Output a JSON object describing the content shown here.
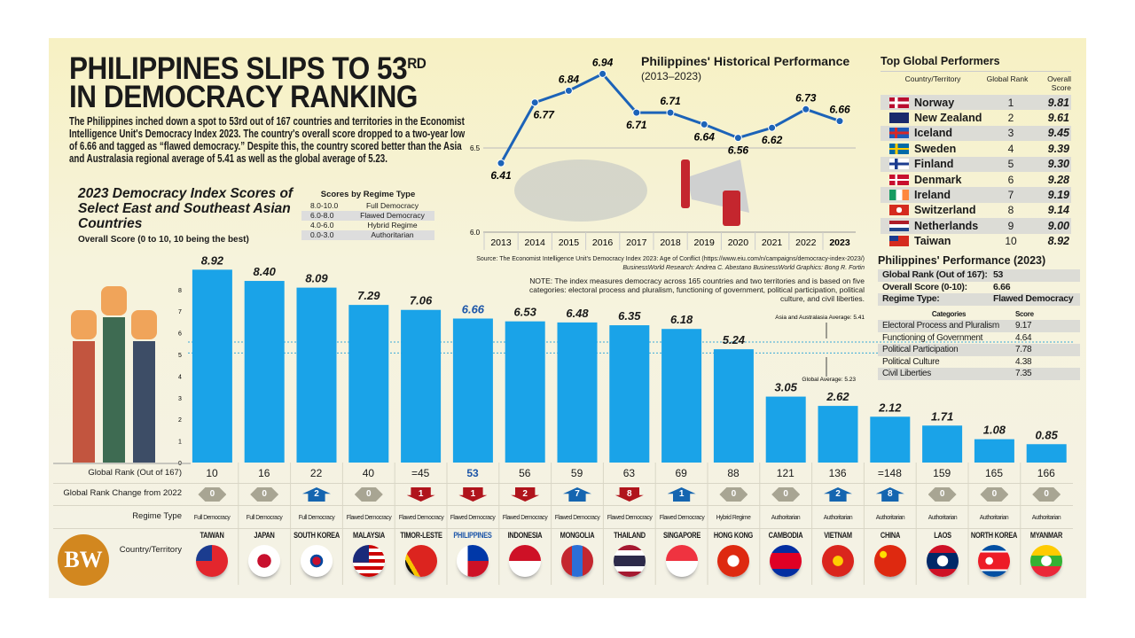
{
  "header": {
    "title_line1": "PHILIPPINES SLIPS TO 53",
    "title_sup": "RD",
    "title_line2": "IN DEMOCRACY RANKING",
    "intro": "The Philippines inched down a spot to 53rd out of 167 countries and territories in the Economist Intelligence Unit's Democracy Index 2023. The country's overall score dropped to a two-year low of 6.66 and tagged as “flawed democracy.” Despite this, the country scored better than the Asia and Australasia regional average of 5.41 as well as the global average of 5.23."
  },
  "regime_table": {
    "title": "Scores by Regime Type",
    "rows": [
      [
        "8.0-10.0",
        "Full Democracy"
      ],
      [
        "6.0-8.0",
        "Flawed Democracy"
      ],
      [
        "4.0-6.0",
        "Hybrid Regime"
      ],
      [
        "0.0-3.0",
        "Authoritarian"
      ]
    ]
  },
  "source": {
    "text": "Source: The Economist Intelligence Unit's Democracy Index 2023: Age of Conflict (https://www.eiu.com/n/campaigns/democracy-index-2023/)",
    "credits": "BusinessWorld Research: Andrea C. Abestano      BusinessWorld Graphics: Bong R. Fortin"
  },
  "note": "NOTE: The index measures democracy across 165 countries and two territories and is based on five categories: electoral process and pluralism, functioning of government, political participation, political culture, and civil liberties.",
  "row_labels": {
    "rank": "Global Rank (Out of 167)",
    "change": "Global Rank Change from 2022",
    "regime": "Regime Type",
    "country": "Country/Territory"
  },
  "logo": "BW",
  "colors": {
    "bar": "#1aa3e8",
    "highlight": "#1c55a8",
    "up": "#1565b0",
    "down": "#b0141c",
    "same": "#a8a593"
  },
  "top_performers": {
    "title": "Top Global Performers",
    "headers": [
      "Country/Territory",
      "Global Rank",
      "Overall Score"
    ],
    "rows": [
      [
        "Norway",
        "1",
        "9.81"
      ],
      [
        "New Zealand",
        "2",
        "9.61"
      ],
      [
        "Iceland",
        "3",
        "9.45"
      ],
      [
        "Sweden",
        "4",
        "9.39"
      ],
      [
        "Finland",
        "5",
        "9.30"
      ],
      [
        "Denmark",
        "6",
        "9.28"
      ],
      [
        "Ireland",
        "7",
        "9.19"
      ],
      [
        "Switzerland",
        "8",
        "9.14"
      ],
      [
        "Netherlands",
        "9",
        "9.00"
      ],
      [
        "Taiwan",
        "10",
        "8.92"
      ]
    ]
  },
  "ph_performance": {
    "title": "Philippines' Performance (2023)",
    "summary": [
      [
        "Global Rank (Out of 167):",
        "53"
      ],
      [
        "Overall Score (0-10):",
        "6.66"
      ],
      [
        "Regime Type:",
        "Flawed Democracy"
      ]
    ],
    "headers": [
      "Categories",
      "Score"
    ],
    "categories": [
      [
        "Electoral Process and Pluralism",
        "9.17"
      ],
      [
        "Functioning of Government",
        "4.64"
      ],
      [
        "Political Participation",
        "7.78"
      ],
      [
        "Political Culture",
        "4.38"
      ],
      [
        "Civil Liberties",
        "7.35"
      ]
    ]
  },
  "chart_data": [
    {
      "type": "line",
      "title": "Philippines' Historical Performance",
      "subtitle": "(2013–2023)",
      "x": [
        "2013",
        "2014",
        "2015",
        "2016",
        "2017",
        "2018",
        "2019",
        "2020",
        "2021",
        "2022",
        "2023"
      ],
      "values": [
        6.41,
        6.77,
        6.84,
        6.94,
        6.71,
        6.71,
        6.64,
        6.56,
        6.62,
        6.73,
        6.66
      ],
      "yticks": [
        "6.0",
        "6.5"
      ],
      "ylim": [
        6.0,
        7.0
      ],
      "color": "#1c63b8"
    },
    {
      "type": "bar",
      "title": "2023 Democracy Index Scores of Select East and Southeast Asian Countries",
      "ylabel": "Overall Score (0 to 10, 10 being the best)",
      "yticks": [
        "0",
        "1",
        "2",
        "3",
        "4",
        "5",
        "6",
        "7",
        "8"
      ],
      "ylim": [
        0,
        9
      ],
      "reference_lines": [
        {
          "label": "Asia and Australasia Average: 5.41",
          "value": 5.41
        },
        {
          "label": "Global Average: 5.23",
          "value": 5.23
        }
      ],
      "highlight": "PHILIPPINES",
      "categories": [
        "TAIWAN",
        "JAPAN",
        "SOUTH KOREA",
        "MALAYSIA",
        "TIMOR-LESTE",
        "PHILIPPINES",
        "INDONESIA",
        "MONGOLIA",
        "THAILAND",
        "SINGAPORE",
        "HONG KONG",
        "CAMBODIA",
        "VIETNAM",
        "CHINA",
        "LAOS",
        "NORTH KOREA",
        "MYANMAR"
      ],
      "values": [
        8.92,
        8.4,
        8.09,
        7.29,
        7.06,
        6.66,
        6.53,
        6.48,
        6.35,
        6.18,
        5.24,
        3.05,
        2.62,
        2.12,
        1.71,
        1.08,
        0.85
      ],
      "value_labels": [
        "8.92",
        "8.40",
        "8.09",
        "7.29",
        "7.06",
        "6.66",
        "6.53",
        "6.48",
        "6.35",
        "6.18",
        "5.24",
        "3.05",
        "2.62",
        "2.12",
        "1.71",
        "1.08",
        "0.85"
      ],
      "global_rank": [
        "10",
        "16",
        "22",
        "40",
        "=45",
        "53",
        "56",
        "59",
        "63",
        "69",
        "88",
        "121",
        "136",
        "=148",
        "159",
        "165",
        "166"
      ],
      "rank_change": [
        [
          "same",
          "0"
        ],
        [
          "same",
          "0"
        ],
        [
          "up",
          "2"
        ],
        [
          "same",
          "0"
        ],
        [
          "down",
          "1"
        ],
        [
          "down",
          "1"
        ],
        [
          "down",
          "2"
        ],
        [
          "up",
          "7"
        ],
        [
          "down",
          "8"
        ],
        [
          "up",
          "1"
        ],
        [
          "same",
          "0"
        ],
        [
          "same",
          "0"
        ],
        [
          "up",
          "2"
        ],
        [
          "up",
          "8"
        ],
        [
          "same",
          "0"
        ],
        [
          "same",
          "0"
        ],
        [
          "same",
          "0"
        ]
      ],
      "regime_type": [
        "Full Democracy",
        "Full Democracy",
        "Full Democracy",
        "Flawed Democracy",
        "Flawed Democracy",
        "Flawed Democracy",
        "Flawed Democracy",
        "Flawed Democracy",
        "Flawed Democracy",
        "Flawed Democracy",
        "Hybrid Regime",
        "Authoritarian",
        "Authoritarian",
        "Authoritarian",
        "Authoritarian",
        "Authoritarian",
        "Authoritarian"
      ]
    }
  ]
}
